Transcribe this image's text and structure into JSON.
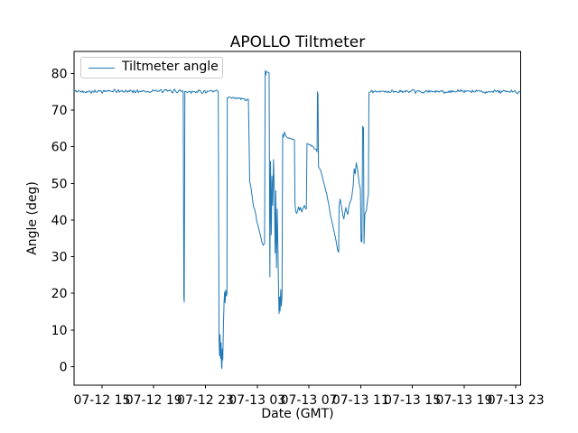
{
  "chart_data": {
    "type": "line",
    "title": "APOLLO Tiltmeter",
    "xlabel": "Date (GMT)",
    "ylabel": "Angle (deg)",
    "grid": false,
    "background_color": "#ffffff",
    "axes_color": "#000000",
    "legend": {
      "position": "upper left",
      "entries": [
        {
          "label": "Tiltmeter angle",
          "color": "#1f77b4"
        }
      ]
    },
    "x_unit": "hours since 07-12 00:00 GMT",
    "xlim": [
      12.84,
      47.37
    ],
    "ylim": [
      -5.05,
      86.0
    ],
    "xticks": {
      "values": [
        15,
        19,
        23,
        27,
        31,
        35,
        39,
        43,
        47
      ],
      "labels": [
        "07-12 15",
        "07-12 19",
        "07-12 23",
        "07-13 03",
        "07-13 07",
        "07-13 11",
        "07-13 15",
        "07-13 19",
        "07-13 23"
      ]
    },
    "yticks": {
      "values": [
        0,
        10,
        20,
        30,
        40,
        50,
        60,
        70,
        80
      ],
      "labels": [
        "0",
        "10",
        "20",
        "30",
        "40",
        "50",
        "60",
        "70",
        "80"
      ]
    },
    "noise_seed": 42,
    "noise_step_hours": 0.07,
    "series": [
      {
        "name": "Tiltmeter angle",
        "color": "#1f77b4",
        "points": [
          [
            12.84,
            75.1,
            0.55
          ],
          [
            21.28,
            75.2,
            0
          ],
          [
            21.33,
            19.0,
            0
          ],
          [
            21.36,
            17.6,
            0
          ],
          [
            21.41,
            75.1,
            0.55
          ],
          [
            23.99,
            75.0,
            0
          ],
          [
            24.05,
            7.5,
            0
          ],
          [
            24.09,
            3.0,
            0
          ],
          [
            24.13,
            8.8,
            0
          ],
          [
            24.17,
            2.2,
            0
          ],
          [
            24.21,
            6.5,
            0
          ],
          [
            24.24,
            0.2,
            0
          ],
          [
            24.27,
            -0.5,
            0
          ],
          [
            24.3,
            4.8,
            0
          ],
          [
            24.34,
            1.8,
            0
          ],
          [
            24.39,
            11.5,
            0
          ],
          [
            24.44,
            17.8,
            0
          ],
          [
            24.48,
            20.4,
            0
          ],
          [
            24.52,
            17.4,
            0
          ],
          [
            24.57,
            20.9,
            0
          ],
          [
            24.62,
            19.3,
            0
          ],
          [
            24.66,
            20.0,
            0
          ],
          [
            24.69,
            73.4,
            0.45
          ],
          [
            26.32,
            72.9,
            0
          ],
          [
            26.42,
            50.6,
            0.6
          ],
          [
            26.52,
            48.8,
            0.6
          ],
          [
            26.62,
            46.2,
            0.6
          ],
          [
            26.72,
            43.6,
            0.6
          ],
          [
            26.9,
            41.4,
            0.6
          ],
          [
            27.06,
            38.6,
            0.6
          ],
          [
            27.22,
            36.2,
            0.5
          ],
          [
            27.36,
            34.0,
            0.4
          ],
          [
            27.46,
            33.1,
            0.35
          ],
          [
            27.57,
            33.7,
            0
          ],
          [
            27.62,
            80.8,
            0
          ],
          [
            27.66,
            79.5,
            0
          ],
          [
            27.7,
            80.4,
            0.25
          ],
          [
            27.92,
            80.1,
            0
          ],
          [
            27.98,
            24.5,
            0
          ],
          [
            28.03,
            56.0,
            0
          ],
          [
            28.09,
            36.0,
            0
          ],
          [
            28.14,
            52.0,
            0
          ],
          [
            28.2,
            44.0,
            0
          ],
          [
            28.26,
            56.5,
            0
          ],
          [
            28.33,
            47.0,
            0
          ],
          [
            28.39,
            31.0,
            0
          ],
          [
            28.44,
            48.0,
            0
          ],
          [
            28.49,
            27.0,
            0
          ],
          [
            28.55,
            43.0,
            0
          ],
          [
            28.6,
            33.0,
            0
          ],
          [
            28.65,
            21.0,
            0
          ],
          [
            28.69,
            14.5,
            0
          ],
          [
            28.73,
            19.0,
            0
          ],
          [
            28.77,
            15.2,
            0
          ],
          [
            28.82,
            21.0,
            0
          ],
          [
            28.87,
            16.5,
            0
          ],
          [
            28.92,
            19.5,
            0
          ],
          [
            28.97,
            63.4,
            0
          ],
          [
            29.03,
            62.6,
            0.35
          ],
          [
            29.11,
            64.0,
            0.3
          ],
          [
            29.26,
            62.7,
            0.3
          ],
          [
            29.56,
            62.2,
            0.3
          ],
          [
            29.88,
            61.8,
            0
          ],
          [
            29.92,
            44.7,
            0
          ],
          [
            29.98,
            42.3,
            1.0
          ],
          [
            30.2,
            43.6,
            1.0
          ],
          [
            30.45,
            42.2,
            1.0
          ],
          [
            30.65,
            44.0,
            0.9
          ],
          [
            30.8,
            43.0,
            0
          ],
          [
            30.85,
            60.9,
            0
          ],
          [
            31.05,
            60.5,
            0.35
          ],
          [
            31.35,
            60.0,
            0.4
          ],
          [
            31.55,
            59.3,
            0.45
          ],
          [
            31.63,
            58.6,
            0
          ],
          [
            31.66,
            75.0,
            0
          ],
          [
            31.7,
            74.3,
            0
          ],
          [
            31.74,
            54.5,
            0
          ],
          [
            31.9,
            53.6,
            0.4
          ],
          [
            32.02,
            52.0,
            0.45
          ],
          [
            32.15,
            50.1,
            0.45
          ],
          [
            32.3,
            48.0,
            0.45
          ],
          [
            32.45,
            45.6,
            0.45
          ],
          [
            32.6,
            42.8,
            0.45
          ],
          [
            32.75,
            40.0,
            0.45
          ],
          [
            32.93,
            37.1,
            0.45
          ],
          [
            33.1,
            34.3,
            0.4
          ],
          [
            33.22,
            31.8,
            0.3
          ],
          [
            33.3,
            31.2,
            0
          ],
          [
            33.33,
            44.0,
            0
          ],
          [
            33.42,
            45.7,
            0.6
          ],
          [
            33.55,
            43.0,
            0.6
          ],
          [
            33.7,
            40.3,
            0.6
          ],
          [
            33.85,
            43.4,
            0.6
          ],
          [
            34.0,
            41.5,
            0.6
          ],
          [
            34.15,
            44.6,
            0.5
          ],
          [
            34.3,
            46.0,
            0.4
          ],
          [
            34.42,
            49.3,
            0.3
          ],
          [
            34.5,
            54.0,
            0.25
          ],
          [
            34.58,
            52.6,
            0.25
          ],
          [
            34.66,
            55.6,
            0.25
          ],
          [
            34.76,
            53.8,
            0.3
          ],
          [
            34.88,
            50.2,
            0.3
          ],
          [
            34.98,
            48.4,
            0
          ],
          [
            35.03,
            34.2,
            0
          ],
          [
            35.07,
            35.8,
            0
          ],
          [
            35.1,
            34.0,
            0
          ],
          [
            35.15,
            65.6,
            0
          ],
          [
            35.19,
            64.7,
            0
          ],
          [
            35.22,
            65.2,
            0
          ],
          [
            35.26,
            33.6,
            0
          ],
          [
            35.32,
            41.5,
            0.5
          ],
          [
            35.45,
            42.8,
            0.5
          ],
          [
            35.56,
            46.3,
            0
          ],
          [
            35.6,
            47.0,
            0
          ],
          [
            35.64,
            74.7,
            0
          ],
          [
            35.8,
            75.1,
            0.55
          ],
          [
            40.0,
            75.0,
            0.55
          ],
          [
            44.0,
            75.1,
            0.55
          ],
          [
            47.37,
            75.0,
            0
          ]
        ]
      }
    ]
  }
}
